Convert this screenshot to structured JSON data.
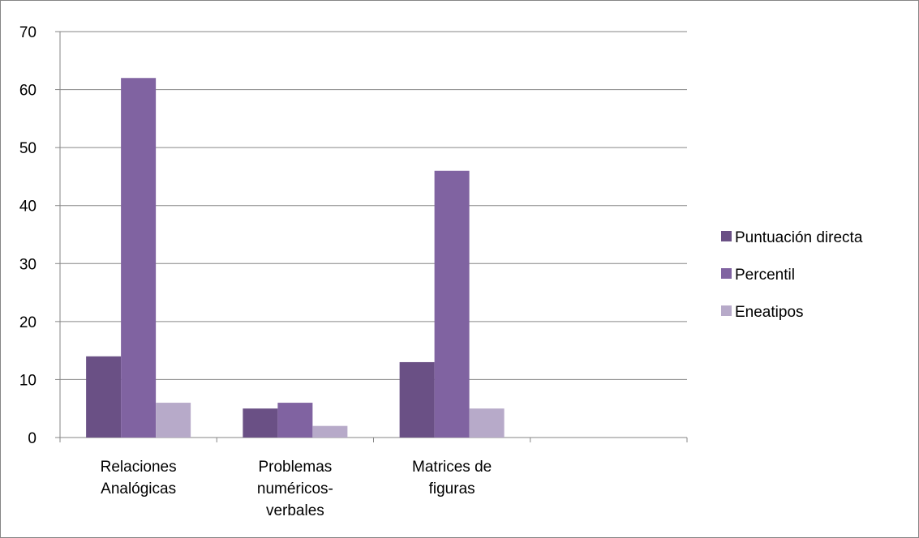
{
  "chart_data": {
    "type": "bar",
    "categories": [
      [
        "Relaciones",
        "Analógicas"
      ],
      [
        "Problemas",
        "numéricos-",
        "verbales"
      ],
      [
        "Matrices de",
        "figuras"
      ],
      [
        ""
      ]
    ],
    "series": [
      {
        "name": "Puntuación directa",
        "values": [
          14,
          5,
          13,
          null
        ],
        "color": "#6a5085"
      },
      {
        "name": "Percentil",
        "values": [
          62,
          6,
          46,
          null
        ],
        "color": "#8063a1"
      },
      {
        "name": "Eneatipos",
        "values": [
          6,
          2,
          5,
          null
        ],
        "color": "#b7aac9"
      }
    ],
    "ylim": [
      0,
      70
    ],
    "yticks": [
      0,
      10,
      20,
      30,
      40,
      50,
      60,
      70
    ],
    "grid": true,
    "legend_position": "right",
    "title": "",
    "xlabel": "",
    "ylabel": ""
  }
}
